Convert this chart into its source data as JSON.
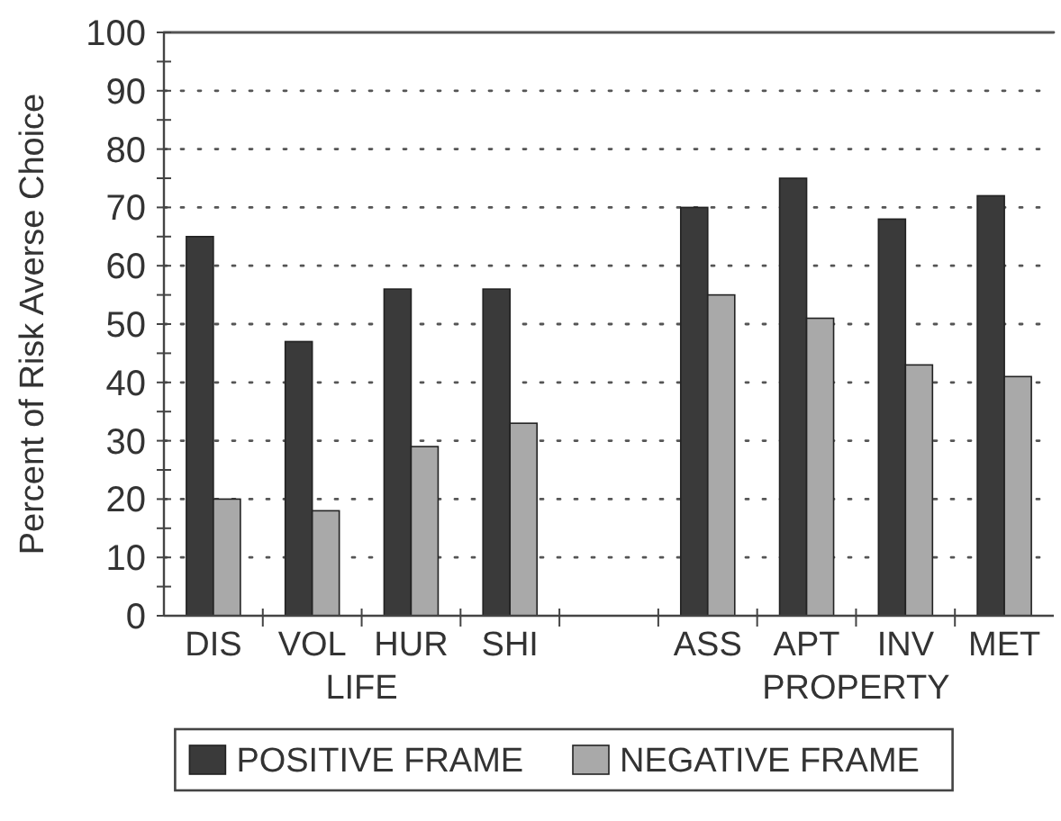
{
  "chart_data": {
    "type": "bar",
    "ylabel": "Percent of Risk Averse Choice",
    "categories": [
      "DIS",
      "VOL",
      "HUR",
      "SHI",
      null,
      "ASS",
      "APT",
      "INV",
      "MET"
    ],
    "series": [
      {
        "name": "POSITIVE FRAME",
        "color": "#3a3a3a",
        "values": [
          65,
          47,
          56,
          56,
          null,
          70,
          75,
          68,
          72
        ]
      },
      {
        "name": "NEGATIVE FRAME",
        "color": "#a9a9a9",
        "values": [
          20,
          18,
          29,
          33,
          null,
          55,
          51,
          43,
          41
        ]
      }
    ],
    "ylim": [
      0,
      100
    ],
    "yticks": [
      0,
      {
        "value": 5,
        "label": null
      },
      10,
      {
        "value": 15,
        "label": null
      },
      20,
      {
        "value": 25,
        "label": null
      },
      30,
      {
        "value": 35,
        "label": null
      },
      40,
      {
        "value": 45,
        "label": null
      },
      50,
      {
        "value": 55,
        "label": null
      },
      60,
      {
        "value": 65,
        "label": null
      },
      70,
      {
        "value": 75,
        "label": null
      },
      80,
      {
        "value": 85,
        "label": null
      },
      90,
      {
        "value": 95,
        "label": null
      },
      100
    ],
    "grid": "y",
    "legend": "bottom",
    "annotations": [
      "LIFE",
      "PROPERTY"
    ]
  }
}
